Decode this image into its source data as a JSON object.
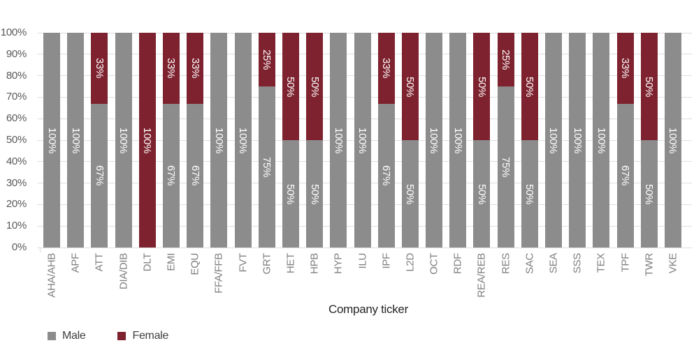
{
  "chart_data": {
    "type": "bar",
    "stacked": true,
    "title": "",
    "xlabel": "Company ticker",
    "ylabel": "",
    "grid": true,
    "legend_position": "bottom-left",
    "data_label_suffix": "%",
    "y_axis": {
      "min": 0,
      "max": 100,
      "ticks_top_to_bottom": [
        "100%",
        "90%",
        "80%",
        "70%",
        "60%",
        "50%",
        "40%",
        "30%",
        "20%",
        "10%",
        "0%"
      ]
    },
    "categories": [
      "AHA/AHB",
      "APF",
      "ATT",
      "DIA/DIB",
      "DLT",
      "EMI",
      "EQU",
      "FFA/FFB",
      "FVT",
      "GRT",
      "HET",
      "HPB",
      "HYP",
      "ILU",
      "IPF",
      "L2D",
      "OCT",
      "RDF",
      "REA/REB",
      "RES",
      "SAC",
      "SEA",
      "SSS",
      "TEX",
      "TPF",
      "TWR",
      "VKE"
    ],
    "series": [
      {
        "name": "Male",
        "color": "#8c8c8c",
        "values": [
          100,
          100,
          67,
          100,
          0,
          67,
          67,
          100,
          100,
          75,
          50,
          50,
          100,
          100,
          67,
          50,
          100,
          100,
          50,
          75,
          50,
          100,
          100,
          100,
          67,
          50,
          100
        ]
      },
      {
        "name": "Female",
        "color": "#7d222e",
        "values": [
          0,
          0,
          33,
          0,
          100,
          33,
          33,
          0,
          0,
          25,
          50,
          50,
          0,
          0,
          33,
          50,
          0,
          0,
          50,
          25,
          50,
          0,
          0,
          0,
          33,
          50,
          0
        ]
      }
    ]
  },
  "colors": {
    "male": "#8c8c8c",
    "female": "#7d222e",
    "gridline": "#dedede",
    "y_tick_text": "#595959",
    "x_tick_text": "#7f7f7f",
    "axis_title_text": "#262626",
    "legend_text": "#404040",
    "data_label_text": "#ffffff",
    "background": "#ffffff"
  }
}
